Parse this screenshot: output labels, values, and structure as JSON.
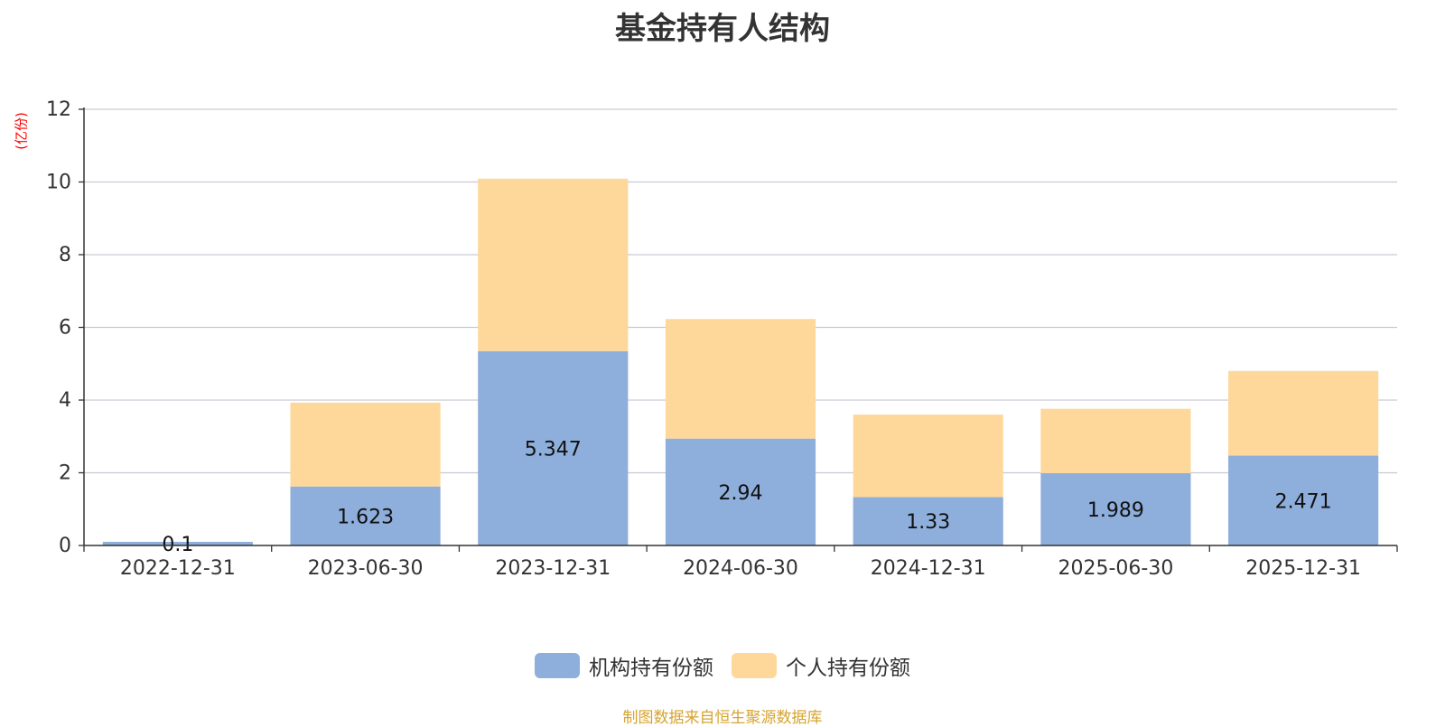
{
  "chart_data": {
    "type": "bar",
    "stacked": true,
    "title": "基金持有人结构",
    "ylabel": "(亿份)",
    "xlabel": "",
    "categories": [
      "2022-12-31",
      "2023-06-30",
      "2023-12-31",
      "2024-06-30",
      "2024-12-31",
      "2025-06-30",
      "2025-12-31"
    ],
    "series": [
      {
        "name": "机构持有份额",
        "color": "#8eaedb",
        "values": [
          0.1,
          1.623,
          5.347,
          2.94,
          1.33,
          1.989,
          2.471
        ],
        "labels": [
          "0.1",
          "1.623",
          "5.347",
          "2.94",
          "1.33",
          "1.989",
          "2.471"
        ]
      },
      {
        "name": "个人持有份额",
        "color": "#fdd89a",
        "values": [
          0.0,
          2.307,
          4.743,
          3.29,
          2.27,
          1.771,
          2.329
        ]
      }
    ],
    "ylim": [
      0,
      12
    ],
    "yticks": [
      "0",
      "2",
      "4",
      "6",
      "8",
      "10",
      "12"
    ],
    "grid": true,
    "legend_position": "bottom-center"
  },
  "source_text": "制图数据来自恒生聚源数据库"
}
